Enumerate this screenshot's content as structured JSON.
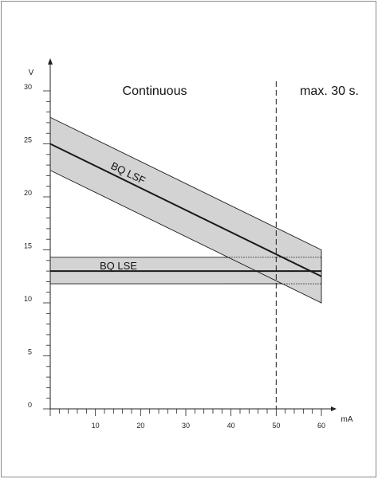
{
  "chart_data": {
    "type": "area",
    "title": "",
    "xlabel": "mA",
    "ylabel": "V",
    "xlim": [
      0,
      60
    ],
    "ylim": [
      0,
      30
    ],
    "x_ticks": [
      10,
      20,
      30,
      40,
      50,
      60
    ],
    "y_ticks": [
      0,
      5,
      10,
      15,
      20,
      25,
      30
    ],
    "x_tick_labels": [
      "10",
      "20",
      "30",
      "40",
      "50",
      "60"
    ],
    "y_tick_labels": [
      "0",
      "5",
      "10",
      "15",
      "20",
      "25",
      "30"
    ],
    "grid": false,
    "region_labels": {
      "continuous": "Continuous",
      "short_time": "max. 30 s."
    },
    "boundary_x": 50,
    "series": [
      {
        "name": "BQ LSF",
        "x": [
          0,
          60
        ],
        "nominal": [
          25,
          12.5
        ],
        "upper": [
          27.5,
          15
        ],
        "lower": [
          22.5,
          10
        ]
      },
      {
        "name": "BQ LSE",
        "x": [
          0,
          60
        ],
        "nominal": [
          13,
          13
        ],
        "upper": [
          14.3,
          14.3
        ],
        "lower": [
          11.8,
          11.8
        ]
      }
    ]
  },
  "colors": {
    "band_fill": "#d3d3d3",
    "line": "#1a1a1a",
    "axis": "#222222"
  }
}
